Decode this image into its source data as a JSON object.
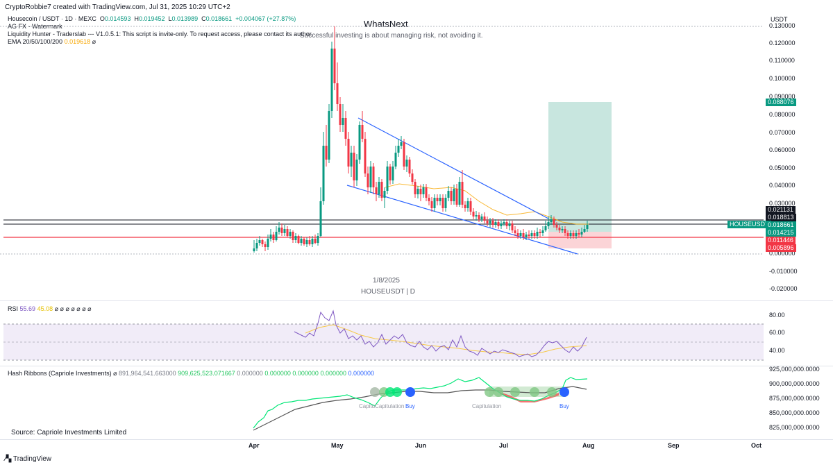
{
  "header": {
    "author_line": "CryptoRobbie7 created with TradingView.com, Jul 31, 2025 10:29 UTC+2",
    "symbol": "Housecoin / USDT · 1D · MEXC",
    "ohlc": {
      "o_label": "O",
      "o": "0.014593",
      "h_label": "H",
      "h": "0.019452",
      "l_label": "L",
      "l": "0.013989",
      "c_label": "C",
      "c": "0.018661",
      "change": "+0.004067 (+27.87%)"
    },
    "indicator1": "AG FX - Watermark",
    "indicator2": "Liquidity Hunter - Traderslab --- V1.0.5.1: This script is invite-only. To request access, please contact its author.",
    "ema_label": "EMA 20/50/100/200",
    "ema_value": "0.019618",
    "eye_glyph": "⌀"
  },
  "watermark": {
    "title": "WhatsNext",
    "subtitle": "Successful investing is about managing risk, not avoiding it.",
    "date": "1/8/2025",
    "pair": "HOUSEUSDT | D"
  },
  "currency": "USDT",
  "price_axis": [
    "0.130000",
    "0.120000",
    "0.110000",
    "0.100000",
    "0.090000",
    "0.080000",
    "0.070000",
    "0.060000",
    "0.050000",
    "0.040000",
    "0.030000",
    "0.000000",
    "-0.010000",
    "-0.020000"
  ],
  "price_tags": {
    "target": "0.088076",
    "t1": "0.021131",
    "t2": "0.018813",
    "symbol_tag": "HOUSEUSDT",
    "current": "0.018661",
    "entry": "0.014215",
    "stop": "0.011446",
    "stop2": "0.005896"
  },
  "rsi": {
    "label": "RSI",
    "value": "55.69",
    "ma": "45.08",
    "glyphs": "⌀ ⌀ ⌀ ⌀ ⌀ ⌀ ⌀",
    "axis": [
      "80.00",
      "60.00",
      "40.00"
    ]
  },
  "hash": {
    "label": "Hash Ribbons (Capriole Investments)",
    "glyph": "⌀",
    "v1": "891,964,541.663000",
    "v2": "909,625,523.071667",
    "v3": "0.000000",
    "v4": "0.000000",
    "v5": "0.000000",
    "v6": "0.000000",
    "v7": "0.000000",
    "axis": [
      "925,000,000.0000",
      "900,000,000.0000",
      "875,000,000.0000",
      "850,000,000.0000",
      "825,000,000.0000"
    ],
    "buy1": "Buy",
    "buy2": "Buy",
    "cap1": "CapituCapitulation",
    "cap2": "Capitulation",
    "source": "Source: Capriole Investments Limited"
  },
  "months": [
    "Apr",
    "May",
    "Jun",
    "Jul",
    "Aug",
    "Sep",
    "Oct"
  ],
  "footer": {
    "brand": "TradingView"
  },
  "colors": {
    "up": "#089981",
    "down": "#f23645",
    "ema": "#f7a600",
    "wedge": "#2962ff",
    "target_zone": "#c8e6df",
    "stop_zone": "#fbd4d7"
  }
}
